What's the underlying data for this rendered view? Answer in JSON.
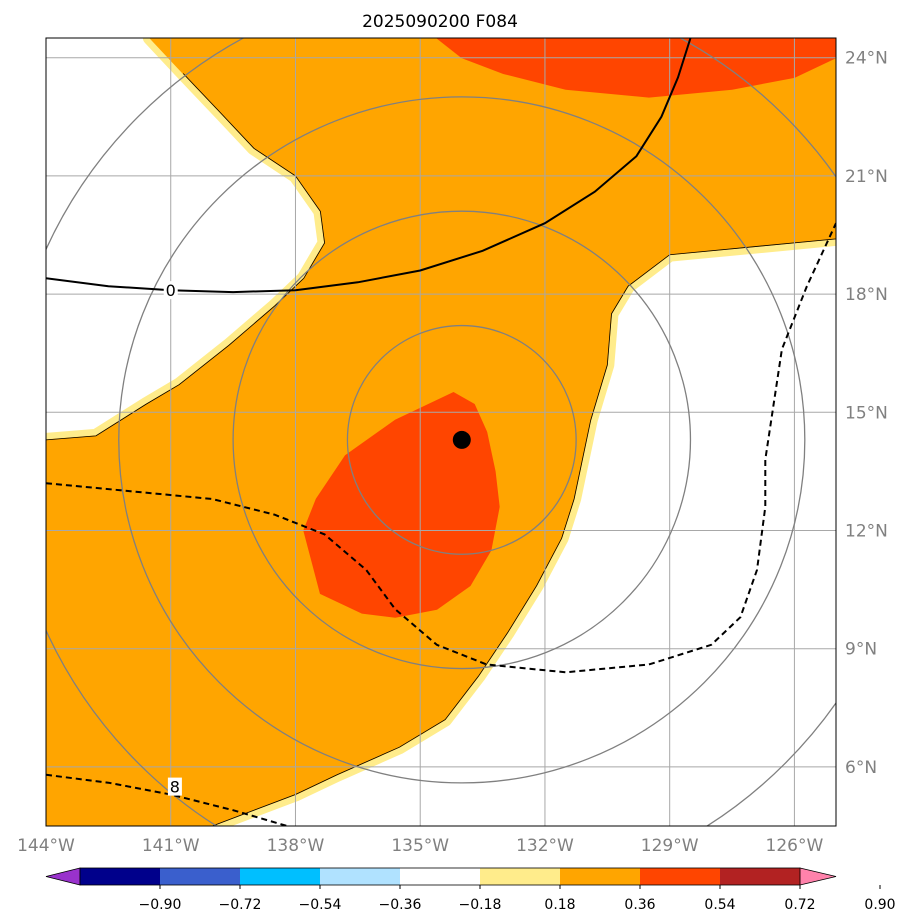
{
  "chart_data": {
    "type": "map-contour",
    "title": "2025090200 F084",
    "projection": "PlateCarree",
    "extent": {
      "lon": [
        -144,
        -125
      ],
      "lat": [
        4.5,
        24.5
      ]
    },
    "xticks": [
      {
        "lon": -144,
        "label": "144°W"
      },
      {
        "lon": -141,
        "label": "141°W"
      },
      {
        "lon": -138,
        "label": "138°W"
      },
      {
        "lon": -135,
        "label": "135°W"
      },
      {
        "lon": -132,
        "label": "132°W"
      },
      {
        "lon": -129,
        "label": "129°W"
      },
      {
        "lon": -126,
        "label": "126°W"
      }
    ],
    "yticks": [
      {
        "lat": 6,
        "label": "6°N"
      },
      {
        "lat": 9,
        "label": "9°N"
      },
      {
        "lat": 12,
        "label": "12°N"
      },
      {
        "lat": 15,
        "label": "15°N"
      },
      {
        "lat": 18,
        "label": "18°N"
      },
      {
        "lat": 21,
        "label": "21°N"
      },
      {
        "lat": 24,
        "label": "24°N"
      }
    ],
    "grid": true,
    "center": {
      "lon": -134,
      "lat": 14.3,
      "marker": "filled-circle"
    },
    "range_rings_deg": [
      2.75,
      5.5,
      8.25,
      11.0
    ],
    "colorbar": {
      "levels": [
        -0.9,
        -0.72,
        -0.54,
        -0.36,
        -0.18,
        0.18,
        0.36,
        0.54,
        0.72,
        0.9
      ],
      "tick_labels": [
        "−0.90",
        "−0.72",
        "−0.54",
        "−0.36",
        "−0.18",
        "0.18",
        "0.36",
        "0.54",
        "0.72",
        "0.90"
      ],
      "colors": [
        "#9932CC",
        "#00008B",
        "#3A5FCD",
        "#00BFFF",
        "#B0E2FF",
        "#FFFFFF",
        "#FFEC8B",
        "#FFA500",
        "#FF4500",
        "#B22222",
        "#FF82AB"
      ],
      "extend": "both"
    },
    "filled_regions": [
      {
        "range": "0.36-0.54",
        "color": "#FFA500",
        "lonlat": [
          [
            -141.5,
            24.5
          ],
          [
            -125,
            24.5
          ],
          [
            -125,
            19.4
          ],
          [
            -127,
            19.2
          ],
          [
            -129,
            19.0
          ],
          [
            -130,
            18.2
          ],
          [
            -130.4,
            17.5
          ],
          [
            -130.5,
            16.2
          ],
          [
            -130.9,
            14.8
          ],
          [
            -131.3,
            12.8
          ],
          [
            -131.6,
            11.8
          ],
          [
            -132.2,
            10.6
          ],
          [
            -132.9,
            9.4
          ],
          [
            -133.6,
            8.3
          ],
          [
            -134.4,
            7.2
          ],
          [
            -135.5,
            6.5
          ],
          [
            -137,
            5.8
          ],
          [
            -138,
            5.3
          ],
          [
            -139,
            4.9
          ],
          [
            -140,
            4.5
          ],
          [
            -144,
            4.5
          ],
          [
            -144,
            14.3
          ],
          [
            -142.8,
            14.4
          ],
          [
            -141.6,
            15.2
          ],
          [
            -140.8,
            15.7
          ],
          [
            -139.6,
            16.7
          ],
          [
            -138.5,
            17.7
          ],
          [
            -137.8,
            18.4
          ],
          [
            -137.3,
            19.3
          ],
          [
            -137.4,
            20.1
          ],
          [
            -138,
            21.0
          ],
          [
            -139,
            21.7
          ],
          [
            -139.8,
            22.6
          ],
          [
            -140.7,
            23.6
          ]
        ]
      },
      {
        "range": "0.54-0.72",
        "color": "#FF4500",
        "lonlat": [
          [
            -134.2,
            15.5
          ],
          [
            -133.7,
            15.2
          ],
          [
            -133.4,
            14.5
          ],
          [
            -133.2,
            13.5
          ],
          [
            -133.1,
            12.6
          ],
          [
            -133.3,
            11.5
          ],
          [
            -133.8,
            10.6
          ],
          [
            -134.6,
            10.0
          ],
          [
            -135.6,
            9.8
          ],
          [
            -136.4,
            9.9
          ],
          [
            -137.4,
            10.4
          ],
          [
            -137.6,
            11.2
          ],
          [
            -137.8,
            12.0
          ],
          [
            -137.5,
            12.8
          ],
          [
            -136.8,
            13.9
          ],
          [
            -135.6,
            14.8
          ]
        ]
      },
      {
        "range": "0.54-0.72",
        "color": "#FF4500",
        "lonlat": [
          [
            -134.6,
            24.5
          ],
          [
            -125,
            24.5
          ],
          [
            -125,
            24.0
          ],
          [
            -126,
            23.5
          ],
          [
            -127.5,
            23.2
          ],
          [
            -129.5,
            23.0
          ],
          [
            -131.5,
            23.2
          ],
          [
            -133,
            23.6
          ],
          [
            -134,
            24.0
          ]
        ]
      }
    ],
    "contour_lines": [
      {
        "value": 0,
        "label": "0",
        "label_at": [
          -141.0,
          18.1
        ],
        "style": "solid",
        "lonlat": [
          [
            -144,
            18.4
          ],
          [
            -142.5,
            18.2
          ],
          [
            -141,
            18.1
          ],
          [
            -139.5,
            18.05
          ],
          [
            -138,
            18.1
          ],
          [
            -136.5,
            18.3
          ],
          [
            -135,
            18.6
          ],
          [
            -133.5,
            19.1
          ],
          [
            -132,
            19.8
          ],
          [
            -130.8,
            20.6
          ],
          [
            -129.8,
            21.5
          ],
          [
            -129.2,
            22.5
          ],
          [
            -128.8,
            23.5
          ],
          [
            -128.5,
            24.5
          ]
        ]
      },
      {
        "value": -8,
        "label": "",
        "style": "dashed",
        "lonlat": [
          [
            -144,
            13.2
          ],
          [
            -142,
            13.0
          ],
          [
            -140,
            12.8
          ],
          [
            -138.5,
            12.4
          ],
          [
            -137.3,
            11.9
          ],
          [
            -136.3,
            11.0
          ],
          [
            -135.6,
            10.0
          ],
          [
            -134.6,
            9.1
          ],
          [
            -133.4,
            8.6
          ],
          [
            -131.5,
            8.4
          ],
          [
            -129.5,
            8.6
          ],
          [
            -128,
            9.1
          ],
          [
            -127.3,
            9.8
          ],
          [
            -126.9,
            11.0
          ],
          [
            -126.7,
            12.6
          ],
          [
            -126.7,
            13.8
          ],
          [
            -126.5,
            15.2
          ],
          [
            -126.3,
            16.6
          ],
          [
            -126.0,
            17.4
          ],
          [
            -125.7,
            18.2
          ],
          [
            -125,
            19.8
          ]
        ]
      },
      {
        "value": -8,
        "label": "8",
        "label_at": [
          -140.9,
          5.5
        ],
        "style": "dashed",
        "lonlat": [
          [
            -144,
            5.8
          ],
          [
            -142.5,
            5.6
          ],
          [
            -141,
            5.3
          ],
          [
            -139.5,
            4.9
          ],
          [
            -138.2,
            4.5
          ]
        ]
      }
    ]
  }
}
